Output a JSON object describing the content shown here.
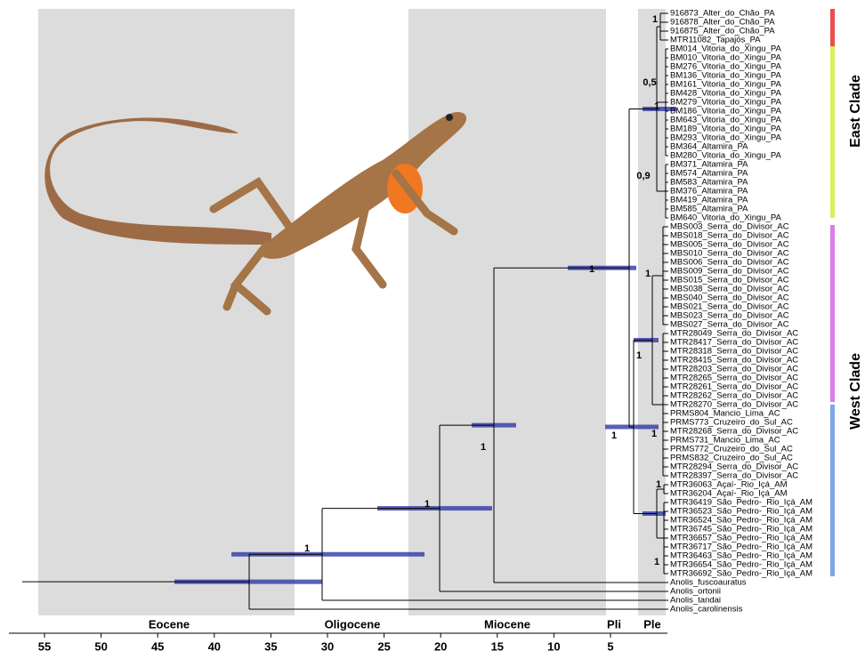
{
  "epochs": [
    "Eocene",
    "Oligocene",
    "Miocene",
    "Pli",
    "Ple"
  ],
  "time_axis": {
    "ticks": [
      55,
      50,
      45,
      40,
      35,
      30,
      25,
      20,
      15,
      10,
      5
    ]
  },
  "tips": [
    "916873_Alter_do_Chão_PA",
    "916878_Alter_do_Chão_PA",
    "916875_Alter_do_Chão_PA",
    "MTR11082_Tapajós_PA",
    "BM014_Vitoria_do_Xingu_PA",
    "BM010_Vitoria_do_Xingu_PA",
    "BM276_Vitoria_do_Xingu_PA",
    "BM136_Vitoria_do_Xingu_PA",
    "BM161_Vitoria_do_Xingu_PA",
    "BM428_Vitoria_do_Xingu_PA",
    "BM279_Vitoria_do_Xingu_PA",
    "BM186_Vitoria_do_Xingu_PA",
    "BM643_Vitoria_do_Xingu_PA",
    "BM189_Vitoria_do_Xingu_PA",
    "BM293_Vitoria_do_Xingu_PA",
    "BM364_Altamira_PA",
    "BM280_Vitoria_do_Xingu_PA",
    "BM371_Altamira_PA",
    "BM574_Altamira_PA",
    "BM583_Altamira_PA",
    "BM376_Altamira_PA",
    "BM419_Altamira_PA",
    "BM585_Altamira_PA",
    "BM640_Vitoria_do_Xingu_PA",
    "MBS003_Serra_do_Divisor_AC",
    "MBS018_Serra_do_Divisor_AC",
    "MBS005_Serra_do_Divisor_AC",
    "MBS010_Serra_do_Divisor_AC",
    "MBS006_Serra_do_Divisor_AC",
    "MBS009_Serra_do_Divisor_AC",
    "MBS015_Serra_do_Divisor_AC",
    "MBS038_Serra_do_Divisor_AC",
    "MBS040_Serra_do_Divisor_AC",
    "MBS021_Serra_do_Divisor_AC",
    "MBS023_Serra_do_Divisor_AC",
    "MBS027_Serra_do_Divisor_AC",
    "MTR28049_Serra_do_Divisor_AC",
    "MTR28417_Serra_do_Divisor_AC",
    "MTR28318_Serra_do_Divisor_AC",
    "MTR28415_Serra_do_Divisor_AC",
    "MTR28203_Serra_do_Divisor_AC",
    "MTR28265_Serra_do_Divisor_AC",
    "MTR28261_Serra_do_Divisor_AC",
    "MTR28262_Serra_do_Divisor_AC",
    "MTR28270_Serra_do_Divisor_AC",
    "PRMS804_Mancio_Lima_AC",
    "PRMS773_Cruzeiro_do_Sul_AC",
    "MTR28268_Serra_do_Divisor_AC",
    "PRMS731_Mancio_Lima_AC",
    "PRMS772_Cruzeiro_do_Sul_AC",
    "PRMS832_Cruzeiro_do_Sul_AC",
    "MTR28294_Serra_do_Divisor_AC",
    "MTR28397_Serra_do_Divisor_AC",
    "MTR36063_Açaí-_Rio_Içá_AM",
    "MTR36204_Açaí-_Rio_Içá_AM",
    "MTR36419_São_Pedro-_Rio_Içá_AM",
    "MTR36523_São_Pedro-_Rio_Içá_AM",
    "MTR36524_São_Pedro-_Rio_Içá_AM",
    "MTR36745_São_Pedro-_Rio_Içá_AM",
    "MTR36657_São_Pedro-_Rio_Içá_AM",
    "MTR36717_São_Pedro-_Rio_Içá_AM",
    "MTR36463_São_Pedro-_Rio_Içá_AM",
    "MTR36654_São_Pedro-_Rio_Içá_AM",
    "MTR36692_São_Pedro-_Rio_Içá_AM",
    "Anolis_fuscoauratus",
    "Anolis_ortonii",
    "Anolis_tandai",
    "Anolis_carolinensis"
  ],
  "support_values": [
    "1",
    "1",
    "1",
    "1",
    "1",
    "1",
    "1",
    "0,5",
    "0,9",
    "1",
    "1",
    "1",
    "1",
    "1"
  ],
  "clades": [
    "East Clade",
    "West Clade"
  ]
}
